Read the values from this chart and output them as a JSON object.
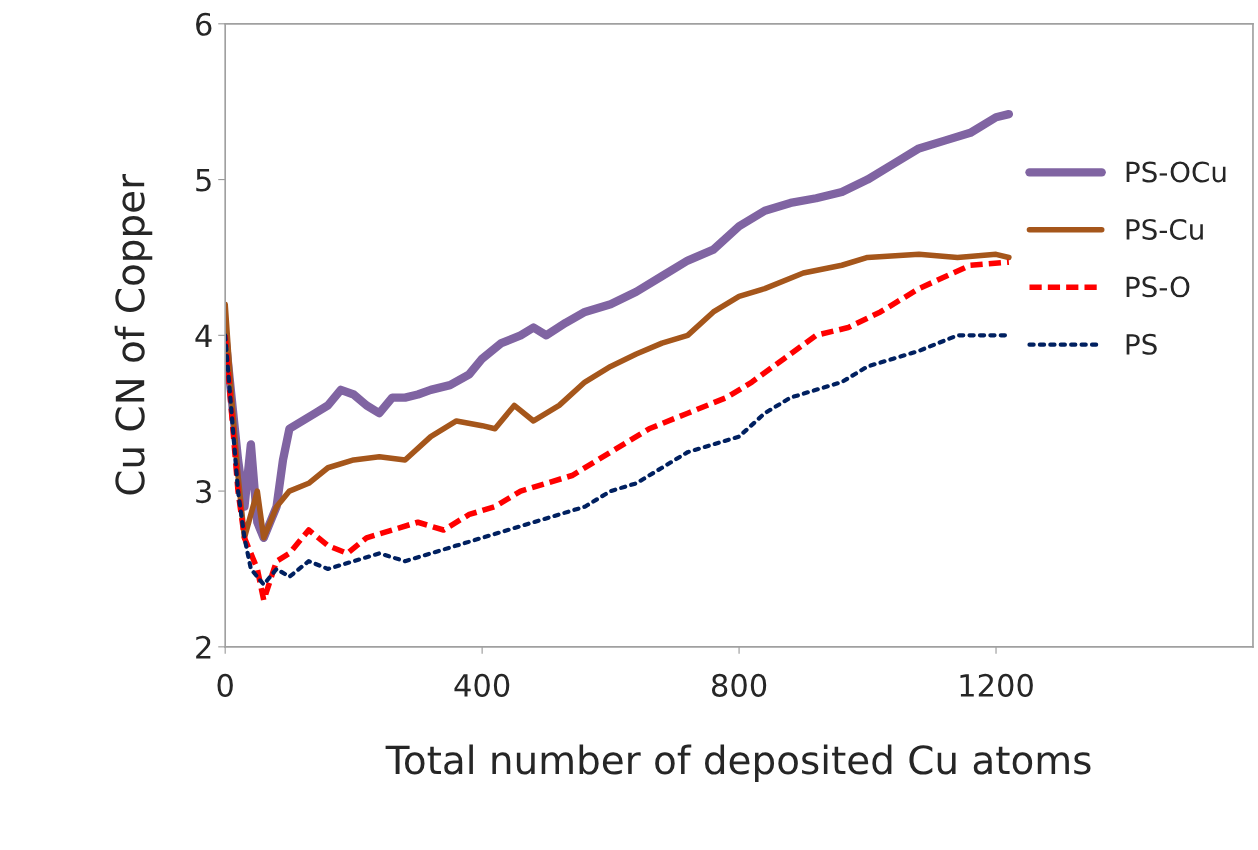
{
  "chart_data": {
    "type": "line",
    "xlabel": "Total number of deposited Cu atoms",
    "ylabel": "Cu CN of Copper",
    "xlim": [
      0,
      1600
    ],
    "xticks": [
      0,
      400,
      800,
      1200
    ],
    "ylim": [
      2,
      6
    ],
    "yticks": [
      2,
      3,
      4,
      5,
      6
    ],
    "grid": false,
    "legend": "right",
    "series": [
      {
        "name": "PS-OCu",
        "color": "#8064a2",
        "line_style": "solid",
        "x": [
          0,
          10,
          20,
          30,
          40,
          50,
          60,
          70,
          80,
          90,
          100,
          120,
          140,
          160,
          180,
          200,
          220,
          240,
          260,
          280,
          300,
          320,
          350,
          380,
          400,
          430,
          460,
          480,
          500,
          530,
          560,
          600,
          640,
          680,
          720,
          760,
          800,
          840,
          880,
          920,
          960,
          1000,
          1040,
          1080,
          1120,
          1160,
          1200,
          1220
        ],
        "values": [
          4.0,
          3.6,
          3.2,
          2.9,
          3.3,
          2.8,
          2.7,
          2.8,
          2.9,
          3.2,
          3.4,
          3.45,
          3.5,
          3.55,
          3.65,
          3.62,
          3.55,
          3.5,
          3.6,
          3.6,
          3.62,
          3.65,
          3.68,
          3.75,
          3.85,
          3.95,
          4.0,
          4.05,
          4.0,
          4.08,
          4.15,
          4.2,
          4.28,
          4.38,
          4.48,
          4.55,
          4.7,
          4.8,
          4.85,
          4.88,
          4.92,
          5.0,
          5.1,
          5.2,
          5.25,
          5.3,
          5.4,
          5.42
        ]
      },
      {
        "name": "PS-Cu",
        "color": "#a5561b",
        "line_style": "solid",
        "x": [
          0,
          10,
          20,
          30,
          50,
          60,
          80,
          100,
          130,
          160,
          200,
          240,
          280,
          320,
          360,
          400,
          420,
          450,
          480,
          520,
          560,
          600,
          640,
          680,
          720,
          760,
          800,
          840,
          900,
          960,
          1000,
          1080,
          1140,
          1200,
          1220
        ],
        "values": [
          4.2,
          3.6,
          3.1,
          2.7,
          3.0,
          2.7,
          2.9,
          3.0,
          3.05,
          3.15,
          3.2,
          3.22,
          3.2,
          3.35,
          3.45,
          3.42,
          3.4,
          3.55,
          3.45,
          3.55,
          3.7,
          3.8,
          3.88,
          3.95,
          4.0,
          4.15,
          4.25,
          4.3,
          4.4,
          4.45,
          4.5,
          4.52,
          4.5,
          4.52,
          4.5
        ]
      },
      {
        "name": "PS-O",
        "color": "#ff0000",
        "line_style": "dashed",
        "x": [
          0,
          10,
          20,
          30,
          50,
          60,
          80,
          100,
          130,
          160,
          190,
          220,
          260,
          300,
          340,
          380,
          420,
          460,
          500,
          540,
          580,
          620,
          660,
          720,
          780,
          820,
          870,
          920,
          970,
          1020,
          1080,
          1160,
          1220
        ],
        "values": [
          4.0,
          3.5,
          3.0,
          2.7,
          2.5,
          2.3,
          2.55,
          2.6,
          2.75,
          2.65,
          2.6,
          2.7,
          2.75,
          2.8,
          2.75,
          2.85,
          2.9,
          3.0,
          3.05,
          3.1,
          3.2,
          3.3,
          3.4,
          3.5,
          3.6,
          3.7,
          3.85,
          4.0,
          4.05,
          4.15,
          4.3,
          4.45,
          4.47
        ]
      },
      {
        "name": "PS",
        "color": "#002060",
        "line_style": "dotted",
        "x": [
          0,
          10,
          20,
          30,
          40,
          60,
          80,
          100,
          130,
          160,
          200,
          240,
          280,
          320,
          360,
          400,
          440,
          480,
          520,
          560,
          600,
          640,
          680,
          720,
          760,
          800,
          840,
          880,
          920,
          960,
          1000,
          1040,
          1080,
          1140,
          1200,
          1220
        ],
        "values": [
          4.0,
          3.5,
          3.0,
          2.7,
          2.5,
          2.4,
          2.5,
          2.45,
          2.55,
          2.5,
          2.55,
          2.6,
          2.55,
          2.6,
          2.65,
          2.7,
          2.75,
          2.8,
          2.85,
          2.9,
          3.0,
          3.05,
          3.15,
          3.25,
          3.3,
          3.35,
          3.5,
          3.6,
          3.65,
          3.7,
          3.8,
          3.85,
          3.9,
          4.0,
          4.0,
          4.0
        ]
      }
    ]
  }
}
